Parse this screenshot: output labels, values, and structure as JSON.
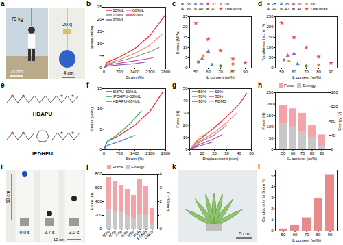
{
  "chart_data": [
    {
      "panel": "b",
      "type": "line",
      "xlabel": "Strain (%)",
      "ylabel": "Stress (MPa)",
      "xlim": [
        0,
        2800
      ],
      "xticks": [
        0,
        700,
        1400,
        2100,
        2800
      ],
      "ylim": [
        0,
        25
      ],
      "yticks": [
        0,
        5,
        10,
        15,
        20,
        25
      ],
      "legend": "top-left",
      "series": [
        {
          "name": "50%IL",
          "color": "#e8283c",
          "x": [
            0,
            150,
            700,
            1400,
            2100,
            2800
          ],
          "values": [
            0,
            2.5,
            4.5,
            8,
            13.5,
            22
          ]
        },
        {
          "name": "60%IL",
          "color": "#f4877a",
          "x": [
            0,
            150,
            700,
            1400,
            2100,
            2650
          ],
          "values": [
            0,
            2,
            3.5,
            6,
            9.5,
            14
          ]
        },
        {
          "name": "70%IL",
          "color": "#8c8c8c",
          "x": [
            0,
            150,
            700,
            1400,
            2100,
            2500
          ],
          "values": [
            0,
            1.6,
            2.8,
            4.5,
            6.8,
            8.5
          ]
        },
        {
          "name": "80%IL",
          "color": "#d9489a",
          "x": [
            0,
            150,
            700,
            1400,
            2100,
            2300
          ],
          "values": [
            0,
            1.2,
            2,
            3,
            4,
            4.5
          ]
        },
        {
          "name": "90%IL",
          "color": "#8b5fbf",
          "x": [
            0,
            150,
            700,
            1400,
            1900
          ],
          "values": [
            0,
            0.8,
            1.3,
            1.8,
            2.5
          ]
        }
      ]
    },
    {
      "panel": "c",
      "type": "scatter",
      "xlabel": "IL content (wt%)",
      "ylabel": "Stress (MPa)",
      "xlim": [
        45,
        95
      ],
      "xticks": [
        50,
        60,
        70,
        80,
        90
      ],
      "ylim": [
        0,
        25
      ],
      "yticks": [
        0,
        5,
        10,
        15,
        20,
        25
      ],
      "legend": "top",
      "series": [
        {
          "name": "28",
          "color": "#808080",
          "marker": "square",
          "x": [
            52
          ],
          "values": [
            3
          ]
        },
        {
          "name": "36",
          "color": "#4a90c8",
          "marker": "triangle",
          "x": [
            63
          ],
          "values": [
            1.5
          ]
        },
        {
          "name": "37",
          "color": "#c85a9a",
          "marker": "triangle",
          "x": [
            55
          ],
          "values": [
            4.5
          ]
        },
        {
          "name": "38",
          "color": "#e0a030",
          "marker": "square",
          "x": [
            56
          ],
          "values": [
            6
          ]
        },
        {
          "name": "39",
          "color": "#8a6fc0",
          "marker": "triangle",
          "x": [
            60
          ],
          "values": [
            8
          ]
        },
        {
          "name": "40",
          "color": "#e08040",
          "marker": "circle",
          "x": [
            80
          ],
          "values": [
            2
          ]
        },
        {
          "name": "41",
          "color": "#6a8a30",
          "marker": "circle",
          "x": [
            70
          ],
          "values": [
            1
          ]
        },
        {
          "name": "This work",
          "color": "#e0505a",
          "marker": "star",
          "x": [
            50,
            60,
            70,
            80,
            90
          ],
          "values": [
            22,
            14,
            8.5,
            4.5,
            2.5
          ]
        }
      ]
    },
    {
      "panel": "d",
      "type": "scatter",
      "xlabel": "IL content (wt%)",
      "ylabel": "Toughness (MJ m⁻³)",
      "xlim": [
        45,
        95
      ],
      "xticks": [
        50,
        60,
        70,
        80,
        90
      ],
      "ylim": [
        0,
        250
      ],
      "yticks": [
        0,
        50,
        100,
        150,
        200,
        250
      ],
      "legend": "top",
      "series": [
        {
          "name": "28",
          "color": "#808080",
          "marker": "square",
          "x": [
            52
          ],
          "values": [
            40
          ]
        },
        {
          "name": "36",
          "color": "#4a90c8",
          "marker": "triangle",
          "x": [
            63
          ],
          "values": [
            20
          ]
        },
        {
          "name": "37",
          "color": "#c85a9a",
          "marker": "triangle",
          "x": [
            55
          ],
          "values": [
            60
          ]
        },
        {
          "name": "38",
          "color": "#e0a030",
          "marker": "square",
          "x": [
            56
          ],
          "values": [
            35
          ]
        },
        {
          "name": "39",
          "color": "#8a6fc0",
          "marker": "triangle",
          "x": [
            60
          ],
          "values": [
            70
          ]
        },
        {
          "name": "40",
          "color": "#e08040",
          "marker": "circle",
          "x": [
            80
          ],
          "values": [
            15
          ]
        },
        {
          "name": "41",
          "color": "#6a8a30",
          "marker": "circle",
          "x": [
            70
          ],
          "values": [
            10
          ]
        },
        {
          "name": "This work",
          "color": "#e0505a",
          "marker": "star",
          "x": [
            50,
            60,
            70,
            80,
            90
          ],
          "values": [
            220,
            150,
            100,
            55,
            25
          ]
        }
      ]
    },
    {
      "panel": "f",
      "type": "line",
      "xlabel": "Strain (%)",
      "ylabel": "Stress (MPa)",
      "xlim": [
        0,
        2800
      ],
      "xticks": [
        0,
        700,
        1400,
        2100,
        2800
      ],
      "ylim": [
        0,
        15
      ],
      "yticks": [
        0,
        5,
        10,
        15
      ],
      "legend": "top-left",
      "series": [
        {
          "name": "SHPU-60%IL",
          "color": "#e8283c",
          "x": [
            0,
            150,
            700,
            1400,
            2100,
            2650
          ],
          "values": [
            0,
            2,
            3.5,
            6,
            9.5,
            14
          ]
        },
        {
          "name": "IPDHPU-60%IL",
          "color": "#3aa35a",
          "x": [
            0,
            150,
            700,
            1200,
            1700
          ],
          "values": [
            0,
            2,
            4,
            6.5,
            9.5
          ]
        },
        {
          "name": "HDAPU-60%IL",
          "color": "#4a7fd0",
          "x": [
            0,
            150,
            700,
            1400
          ],
          "values": [
            0,
            1,
            2,
            3.5
          ]
        }
      ]
    },
    {
      "panel": "g",
      "type": "line",
      "xlabel": "Displacement (mm)",
      "ylabel": "Force (N)",
      "xlim": [
        0,
        50
      ],
      "xticks": [
        0,
        10,
        20,
        30,
        40,
        50
      ],
      "ylim": [
        0,
        50
      ],
      "yticks": [
        0,
        10,
        20,
        30,
        40,
        50
      ],
      "legend": "top-left",
      "series": [
        {
          "name": "50%",
          "color": "#e8283c",
          "x": [
            0,
            5,
            10,
            20,
            30,
            40,
            46
          ],
          "values": [
            0,
            6,
            10,
            18,
            27,
            37,
            46
          ]
        },
        {
          "name": "60%",
          "color": "#f4877a",
          "x": [
            0,
            5,
            10,
            20,
            30,
            38
          ],
          "values": [
            0,
            5,
            8,
            14,
            22,
            30
          ]
        },
        {
          "name": "70%",
          "color": "#8c8c8c",
          "x": [
            0,
            5,
            10,
            20,
            30
          ],
          "values": [
            0,
            4,
            7,
            12,
            20
          ]
        },
        {
          "name": "80%",
          "color": "#d9489a",
          "x": [
            0,
            5,
            10,
            20,
            26
          ],
          "values": [
            0,
            3,
            5,
            9,
            12
          ]
        },
        {
          "name": "90%",
          "color": "#8b5fbf",
          "x": [
            0,
            5,
            10,
            18
          ],
          "values": [
            0,
            2,
            3.5,
            6
          ]
        },
        {
          "name": "PDMS",
          "color": "#f0b070",
          "x": [
            0,
            3,
            6,
            9,
            11
          ],
          "values": [
            0,
            4,
            8,
            11,
            12
          ]
        }
      ]
    },
    {
      "panel": "h",
      "type": "bar",
      "xlabel": "IL content (wt%)",
      "ylabel": "Force (N)",
      "y2label": "Energy (J)",
      "categories": [
        "50",
        "60",
        "70",
        "80",
        "90"
      ],
      "ylim": [
        0,
        250
      ],
      "yticks": [
        0,
        50,
        100,
        150,
        200,
        250
      ],
      "y2lim": [
        0,
        160
      ],
      "y2ticks": [
        0,
        40,
        80,
        120,
        160
      ],
      "legend": "top",
      "series": [
        {
          "name": "Force",
          "color": "#f4a3a8",
          "values": [
            195,
            180,
            160,
            105,
            65
          ]
        },
        {
          "name": "Energy",
          "color": "#c8c8c8",
          "axis": "y2",
          "values": [
            75,
            65,
            50,
            35,
            10
          ]
        }
      ]
    },
    {
      "panel": "j",
      "type": "bar",
      "ylabel": "Force (N)",
      "y2label": "Energy (J)",
      "categories": [
        "50%",
        "60%",
        "70%",
        "80%",
        "90%",
        "PVB",
        "PDMS",
        "Glass"
      ],
      "ylim": [
        0,
        800
      ],
      "yticks": [
        0,
        200,
        400,
        600,
        800
      ],
      "y2lim": [
        0,
        4
      ],
      "y2ticks": [
        0,
        1,
        2,
        3,
        4
      ],
      "legend": "top",
      "series": [
        {
          "name": "Force",
          "color": "#f4a3a8",
          "values": [
            760,
            700,
            640,
            580,
            490,
            720,
            620,
            300
          ]
        },
        {
          "name": "Energy",
          "color": "#c8c8c8",
          "axis": "y2",
          "values": [
            1.4,
            1.3,
            1.2,
            1.0,
            0.8,
            1.1,
            1.0,
            0.4
          ]
        }
      ]
    },
    {
      "panel": "l",
      "type": "bar",
      "xlabel": "IL content (wt%)",
      "ylabel": "Conductivity (mS cm⁻¹)",
      "categories": [
        "50",
        "60",
        "70",
        "80",
        "90"
      ],
      "ylim": [
        0,
        5.5
      ],
      "yticks": [
        0,
        1,
        2,
        3,
        4,
        5
      ],
      "color": "#e88a8a",
      "values": [
        0.2,
        0.5,
        1.2,
        2.9,
        5.1
      ]
    }
  ],
  "images": [
    {
      "panel": "a",
      "texts": [
        "75 kg",
        "20 g",
        "25 cm",
        "4 cm"
      ]
    },
    {
      "panel": "e",
      "texts": [
        "HDAPU",
        "IPDHPU"
      ]
    },
    {
      "panel": "i",
      "texts": [
        "50 cm",
        "0.0 s",
        "2.7 s",
        "3.0 s",
        "10 cm"
      ]
    },
    {
      "panel": "k",
      "texts": [
        "5 cm"
      ]
    }
  ]
}
